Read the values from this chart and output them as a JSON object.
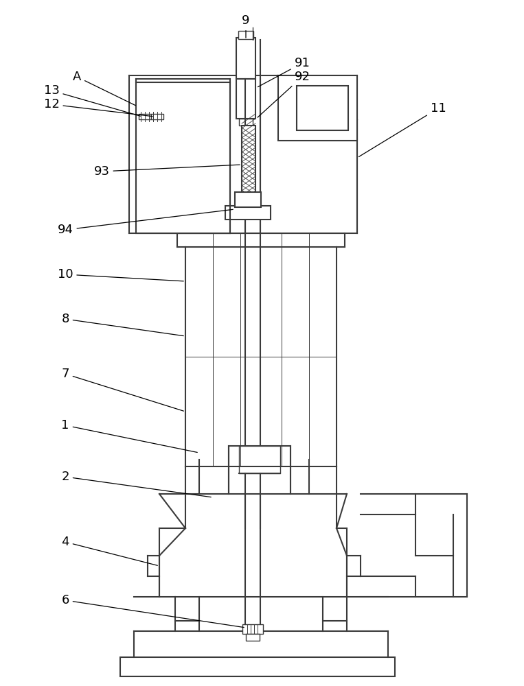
{
  "bg": "#ffffff",
  "lc": "#3a3a3a",
  "lw": 1.5,
  "lw2": 1.0,
  "lw3": 0.7,
  "fig_w": 7.63,
  "fig_h": 10.0,
  "dpi": 100
}
